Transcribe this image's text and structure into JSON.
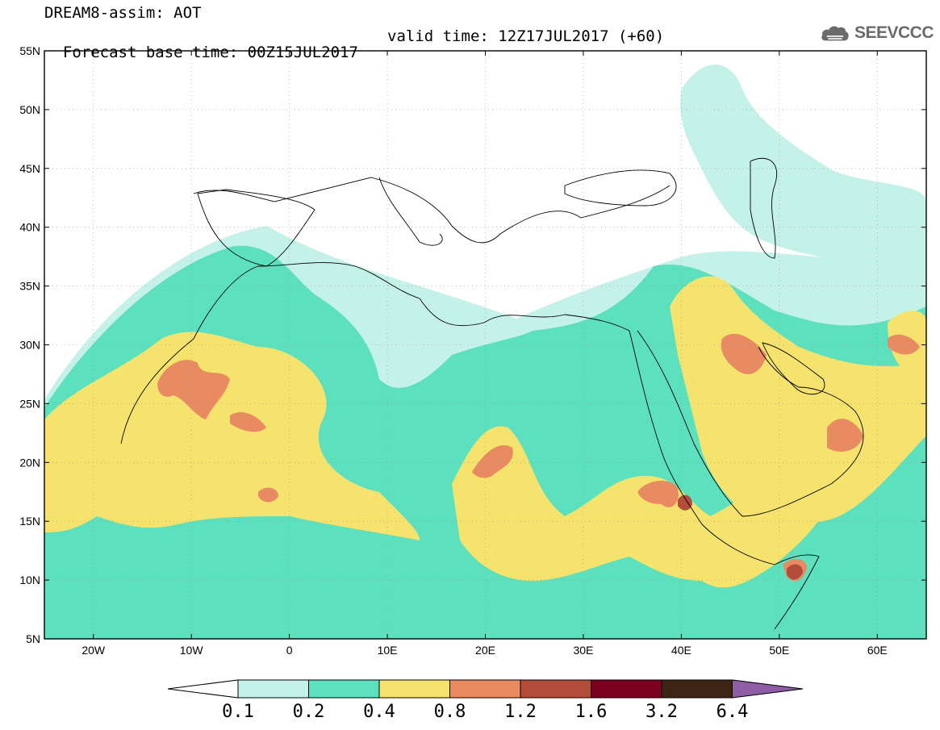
{
  "title": {
    "line1": "DREAM8-assim: AOT",
    "line2_base": "Forecast base time: 00Z15JUL2017",
    "line2_valid": "valid time: 12Z17JUL2017 (+60)"
  },
  "logo": {
    "text": "SEEVCCC",
    "icon": "cloud-icon"
  },
  "map": {
    "lon_range": [
      -25,
      65
    ],
    "lat_range": [
      5,
      55
    ],
    "lat_ticks": [
      {
        "v": 55,
        "label": "55N"
      },
      {
        "v": 50,
        "label": "50N"
      },
      {
        "v": 45,
        "label": "45N"
      },
      {
        "v": 40,
        "label": "40N"
      },
      {
        "v": 35,
        "label": "35N"
      },
      {
        "v": 30,
        "label": "30N"
      },
      {
        "v": 25,
        "label": "25N"
      },
      {
        "v": 20,
        "label": "20N"
      },
      {
        "v": 15,
        "label": "15N"
      },
      {
        "v": 10,
        "label": "10N"
      },
      {
        "v": 5,
        "label": "5N"
      }
    ],
    "lon_ticks": [
      {
        "v": -20,
        "label": "20W"
      },
      {
        "v": -10,
        "label": "10W"
      },
      {
        "v": 0,
        "label": "0"
      },
      {
        "v": 10,
        "label": "10E"
      },
      {
        "v": 20,
        "label": "20E"
      },
      {
        "v": 30,
        "label": "30E"
      },
      {
        "v": 40,
        "label": "40E"
      },
      {
        "v": 50,
        "label": "50E"
      },
      {
        "v": 60,
        "label": "60E"
      }
    ]
  },
  "colorbar": {
    "labels": [
      "0.1",
      "0.2",
      "0.4",
      "0.8",
      "1.2",
      "1.6",
      "3.2",
      "6.4"
    ],
    "colors": [
      "#ffffff",
      "#c4f2e8",
      "#5ce0bd",
      "#f5e36e",
      "#e88b63",
      "#b34c3a",
      "#7d0021",
      "#3d2414",
      "#8f5ca6"
    ]
  },
  "fill_colors": {
    "c1": "#c4f2e8",
    "c2": "#5ce0bd",
    "c3": "#f5e36e",
    "c4": "#e88b63",
    "c5": "#b34c3a",
    "c6": "#7d0021"
  }
}
